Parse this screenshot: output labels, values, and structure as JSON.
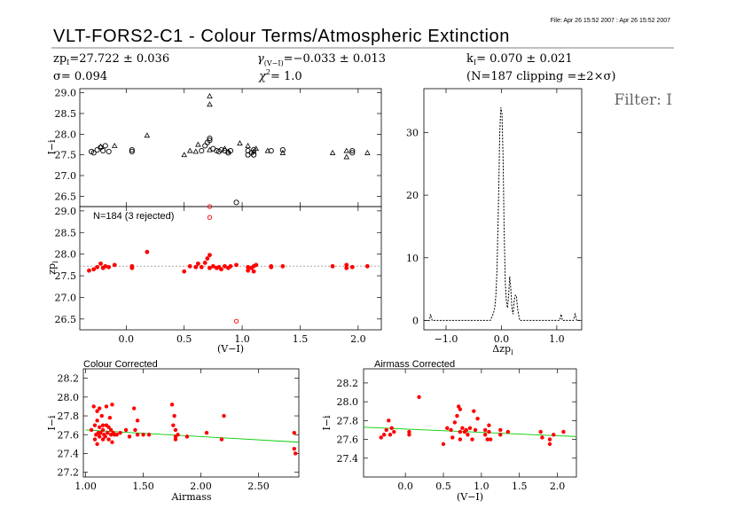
{
  "header": {
    "file_stamp": "File: Apr 26 15:52 2007 : Apr 26 15:52 2007",
    "title": "VLT-FORS2-C1 - Colour Terms/Atmospheric Extinction",
    "zp": "zp",
    "zp_sub": "I",
    "zp_val": "=27.722 ± 0.036",
    "gamma": "γ",
    "gamma_sub": "(V−I)",
    "gamma_val": "=−0.033 ± 0.013",
    "k": "k",
    "k_sub": "I",
    "k_val": "= 0.070 ± 0.021",
    "sigma": "σ=  0.094",
    "chi": "χ",
    "chi_sup": "2",
    "chi_val": "=   1.0",
    "n_clip": "(N=187 clipping =±2×σ)",
    "filter": "Filter: I"
  },
  "chart_data": [
    {
      "id": "raw",
      "type": "scatter",
      "ylabel": "I−i",
      "xlim": [
        -0.4,
        2.2
      ],
      "ylim": [
        26.25,
        29.1
      ],
      "yticks": [
        "29.0",
        "28.5",
        "28.0",
        "27.5",
        "27.0",
        "26.5"
      ],
      "color": "#000000",
      "series": [
        {
          "marker": "circle",
          "x": [
            -0.3,
            -0.28,
            -0.25,
            -0.22,
            -0.2,
            -0.18,
            -0.15,
            0.05,
            0.05,
            0.65,
            0.68,
            0.7,
            0.72,
            0.72,
            0.75,
            0.78,
            0.8,
            0.82,
            0.85,
            0.88,
            0.9,
            0.95,
            1.05,
            1.05,
            1.08,
            1.1,
            1.1,
            1.25,
            1.35,
            1.95,
            1.95
          ],
          "y": [
            27.58,
            27.55,
            27.62,
            27.68,
            27.6,
            27.72,
            27.58,
            27.62,
            27.58,
            27.6,
            27.72,
            27.8,
            27.9,
            27.85,
            27.65,
            27.6,
            27.58,
            27.62,
            27.6,
            27.55,
            27.6,
            26.35,
            27.5,
            27.6,
            27.55,
            27.62,
            27.5,
            27.6,
            27.62,
            27.55,
            27.6
          ]
        },
        {
          "marker": "triangle",
          "x": [
            -0.22,
            -0.1,
            0.18,
            0.5,
            0.55,
            0.6,
            0.62,
            0.72,
            0.72,
            0.72,
            0.85,
            0.88,
            0.98,
            1.05,
            1.1,
            1.12,
            1.22,
            1.35,
            1.78,
            1.9,
            1.9,
            2.08
          ],
          "y": [
            27.7,
            27.72,
            27.97,
            27.5,
            27.6,
            27.58,
            27.75,
            28.92,
            28.72,
            27.62,
            27.65,
            27.58,
            27.78,
            27.72,
            27.58,
            27.65,
            27.6,
            27.55,
            27.55,
            27.45,
            27.6,
            27.55
          ]
        }
      ]
    },
    {
      "id": "corrected",
      "type": "scatter",
      "ylabel": "zp",
      "ylabel_sub": "I",
      "xlabel": "(V−I)",
      "annotation": "N=184 (3 rejected)",
      "xlim": [
        -0.4,
        2.2
      ],
      "ylim": [
        26.25,
        29.1
      ],
      "xticks": [
        "0.0",
        "0.5",
        "1.0",
        "1.5",
        "2.0"
      ],
      "yticks": [
        "29.0",
        "28.5",
        "28.0",
        "27.5",
        "27.0",
        "26.5"
      ],
      "color": "#ff0000",
      "zp_line": 27.722,
      "points": {
        "x": [
          -0.32,
          -0.28,
          -0.25,
          -0.22,
          -0.2,
          -0.18,
          -0.15,
          -0.1,
          0.05,
          0.05,
          0.18,
          0.5,
          0.55,
          0.6,
          0.62,
          0.65,
          0.68,
          0.7,
          0.72,
          0.72,
          0.75,
          0.78,
          0.8,
          0.82,
          0.85,
          0.88,
          0.9,
          0.95,
          1.05,
          1.05,
          1.08,
          1.1,
          1.1,
          1.12,
          1.25,
          1.25,
          1.35,
          1.78,
          1.9,
          1.9,
          1.95,
          2.08
        ],
        "y": [
          27.62,
          27.65,
          27.7,
          27.78,
          27.68,
          27.72,
          27.7,
          27.75,
          27.68,
          27.72,
          28.05,
          27.6,
          27.72,
          27.7,
          27.78,
          27.7,
          27.8,
          27.9,
          27.98,
          27.68,
          27.72,
          27.68,
          27.7,
          27.65,
          27.72,
          27.68,
          27.72,
          27.75,
          27.62,
          27.7,
          27.68,
          27.72,
          27.6,
          27.75,
          27.7,
          27.72,
          27.72,
          27.72,
          27.68,
          27.75,
          27.7,
          27.72
        ]
      },
      "rejected": {
        "x": [
          0.72,
          0.72,
          0.95
        ],
        "y": [
          29.1,
          28.85,
          26.45
        ]
      }
    },
    {
      "id": "histogram",
      "type": "line",
      "xlabel": "Δzp",
      "xlabel_sub": "I",
      "xlim": [
        -1.4,
        1.45
      ],
      "ylim": [
        -1.5,
        37
      ],
      "xticks": [
        "−1.0",
        "0.0",
        "1.0"
      ],
      "yticks": [
        "0",
        "10",
        "20",
        "30"
      ],
      "color": "#000000",
      "x": [
        -1.3,
        -1.28,
        -1.25,
        -0.2,
        -0.15,
        -0.12,
        -0.1,
        -0.08,
        -0.05,
        -0.03,
        -0.01,
        0.01,
        0.03,
        0.05,
        0.07,
        0.09,
        0.11,
        0.13,
        0.15,
        0.17,
        0.19,
        0.21,
        0.23,
        0.25,
        0.27,
        0.29,
        0.31,
        0.33,
        0.35,
        0.37,
        1.05,
        1.08,
        1.1,
        1.3,
        1.33,
        1.36
      ],
      "y": [
        0,
        1,
        0,
        0,
        1,
        2,
        4,
        8,
        20,
        30,
        34,
        33,
        26,
        14,
        6,
        3,
        2,
        4,
        7,
        5,
        2,
        1,
        3,
        4,
        4,
        2,
        1,
        0,
        0,
        0,
        0,
        1,
        0,
        0,
        1,
        0
      ]
    },
    {
      "id": "colour_corrected",
      "type": "scatter",
      "title": "Colour Corrected",
      "xlabel": "Airmass",
      "ylabel": "I−i",
      "xlim": [
        0.98,
        2.85
      ],
      "ylim": [
        27.15,
        28.3
      ],
      "xticks": [
        "1.00",
        "1.50",
        "2.00",
        "2.50"
      ],
      "yticks": [
        "28.2",
        "28.0",
        "27.8",
        "27.6",
        "27.4",
        "27.2"
      ],
      "color": "#ff0000",
      "fit": {
        "x": [
          1.0,
          2.85
        ],
        "y": [
          27.65,
          27.52
        ],
        "color": "#00cc00"
      },
      "points": {
        "x": [
          1.05,
          1.07,
          1.08,
          1.08,
          1.09,
          1.1,
          1.1,
          1.1,
          1.11,
          1.12,
          1.12,
          1.12,
          1.13,
          1.14,
          1.15,
          1.15,
          1.15,
          1.16,
          1.17,
          1.18,
          1.18,
          1.19,
          1.2,
          1.2,
          1.21,
          1.22,
          1.22,
          1.23,
          1.23,
          1.24,
          1.25,
          1.27,
          1.3,
          1.35,
          1.38,
          1.42,
          1.43,
          1.45,
          1.45,
          1.5,
          1.55,
          1.75,
          1.76,
          1.77,
          1.78,
          1.78,
          1.78,
          1.8,
          1.88,
          2.05,
          2.18,
          2.2,
          2.81,
          2.81,
          2.82
        ],
        "y": [
          27.65,
          27.9,
          27.7,
          27.55,
          27.6,
          27.75,
          27.85,
          27.5,
          27.62,
          27.68,
          27.58,
          27.88,
          27.62,
          27.8,
          27.65,
          27.55,
          27.7,
          27.6,
          27.58,
          27.7,
          27.9,
          27.62,
          27.55,
          27.68,
          27.78,
          27.6,
          27.65,
          27.92,
          27.52,
          27.62,
          27.6,
          27.6,
          27.62,
          27.65,
          27.58,
          27.88,
          27.65,
          27.75,
          27.6,
          27.6,
          27.6,
          27.92,
          27.7,
          27.8,
          27.58,
          27.55,
          27.65,
          27.6,
          27.58,
          27.62,
          27.55,
          27.8,
          27.62,
          27.45,
          27.4
        ]
      }
    },
    {
      "id": "airmass_corrected",
      "type": "scatter",
      "title": "Airmass Corrected",
      "xlabel": "(V−I)",
      "ylabel": "I−i",
      "xlim": [
        -0.55,
        2.25
      ],
      "ylim": [
        27.2,
        28.35
      ],
      "xticks": [
        "0.0",
        "0.5",
        "1.0",
        "1.5",
        "2.0"
      ],
      "yticks": [
        "28.2",
        "28.0",
        "27.8",
        "27.6",
        "27.4"
      ],
      "color": "#ff0000",
      "fit": {
        "x": [
          -0.55,
          2.25
        ],
        "y": [
          27.73,
          27.63
        ],
        "color": "#00cc00"
      },
      "points": {
        "x": [
          -0.32,
          -0.28,
          -0.25,
          -0.22,
          -0.2,
          -0.18,
          -0.15,
          0.05,
          0.05,
          0.18,
          0.5,
          0.55,
          0.6,
          0.62,
          0.65,
          0.68,
          0.7,
          0.72,
          0.72,
          0.72,
          0.75,
          0.78,
          0.8,
          0.82,
          0.85,
          0.88,
          0.9,
          0.92,
          0.95,
          1.05,
          1.05,
          1.08,
          1.1,
          1.1,
          1.12,
          1.25,
          1.25,
          1.35,
          1.78,
          1.8,
          1.9,
          1.9,
          1.95,
          2.08
        ],
        "y": [
          27.62,
          27.65,
          27.7,
          27.8,
          27.65,
          27.72,
          27.68,
          27.68,
          27.65,
          28.05,
          27.55,
          27.72,
          27.7,
          27.62,
          27.78,
          27.85,
          27.95,
          27.92,
          27.68,
          27.6,
          27.72,
          27.68,
          27.7,
          27.65,
          27.72,
          27.6,
          27.9,
          27.7,
          27.82,
          27.65,
          27.7,
          27.6,
          27.68,
          27.75,
          27.6,
          27.7,
          27.65,
          27.68,
          27.68,
          27.62,
          27.6,
          27.55,
          27.65,
          27.68
        ]
      }
    }
  ]
}
